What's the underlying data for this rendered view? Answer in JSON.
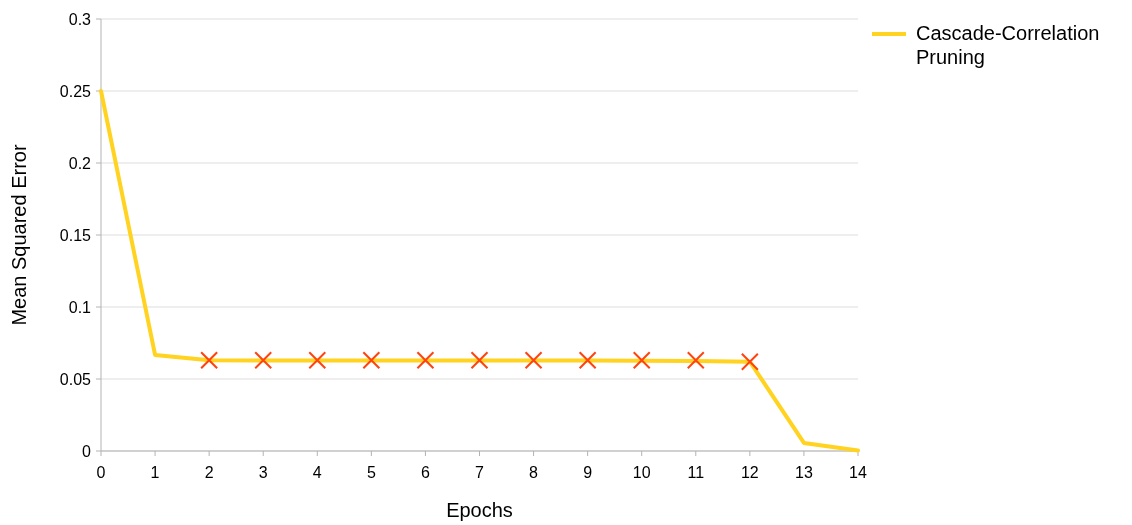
{
  "chart_data": {
    "type": "line",
    "xlabel": "Epochs",
    "ylabel": "Mean Squared Error",
    "x": [
      0,
      1,
      2,
      3,
      4,
      5,
      6,
      7,
      8,
      9,
      10,
      11,
      12,
      13,
      14
    ],
    "series": [
      {
        "name": "Cascade-Correlation Pruning",
        "color": "#ffd320",
        "values": [
          0.25,
          0.0667,
          0.063,
          0.0628,
          0.0628,
          0.0628,
          0.0628,
          0.0628,
          0.0628,
          0.0628,
          0.0627,
          0.0625,
          0.062,
          0.0056,
          0.0003
        ],
        "marker": "none"
      },
      {
        "type": "scatter",
        "color": "#ff420e",
        "x": [
          2,
          3,
          4,
          5,
          6,
          7,
          8,
          9,
          10,
          11,
          12
        ],
        "values": [
          0.063,
          0.063,
          0.063,
          0.063,
          0.063,
          0.063,
          0.063,
          0.063,
          0.063,
          0.063,
          0.062
        ],
        "marker": "cross"
      }
    ],
    "xlim": [
      0,
      14
    ],
    "xticks": [
      0,
      1,
      2,
      3,
      4,
      5,
      6,
      7,
      8,
      9,
      10,
      11,
      12,
      13,
      14
    ],
    "ylim": [
      0,
      0.3
    ],
    "yticks": [
      0,
      0.05,
      0.1,
      0.15,
      0.2,
      0.25,
      0.3
    ],
    "grid": "y",
    "legend": "top right"
  }
}
